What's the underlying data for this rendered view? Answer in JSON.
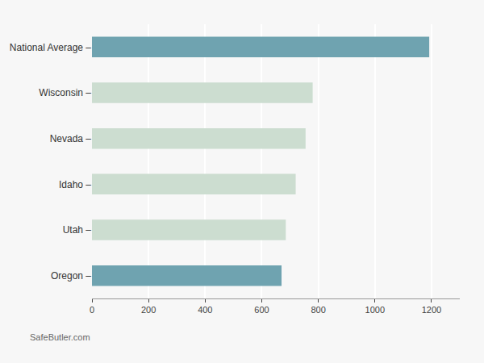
{
  "chart_data": {
    "type": "bar",
    "orientation": "horizontal",
    "categories": [
      "National Average –",
      "Wisconsin –",
      "Nevada –",
      "Idaho –",
      "Utah –",
      "Oregon –"
    ],
    "values": [
      1192,
      780,
      755,
      720,
      685,
      670
    ],
    "colors": [
      "#6fa3b0",
      "#ccddd0",
      "#ccddd0",
      "#ccddd0",
      "#ccddd0",
      "#6fa3b0"
    ],
    "xlim": [
      0,
      1300
    ],
    "xticks": [
      0,
      200,
      400,
      600,
      800,
      1000,
      1200
    ],
    "grid": true,
    "annotations": [
      "SafeButler.com"
    ]
  }
}
